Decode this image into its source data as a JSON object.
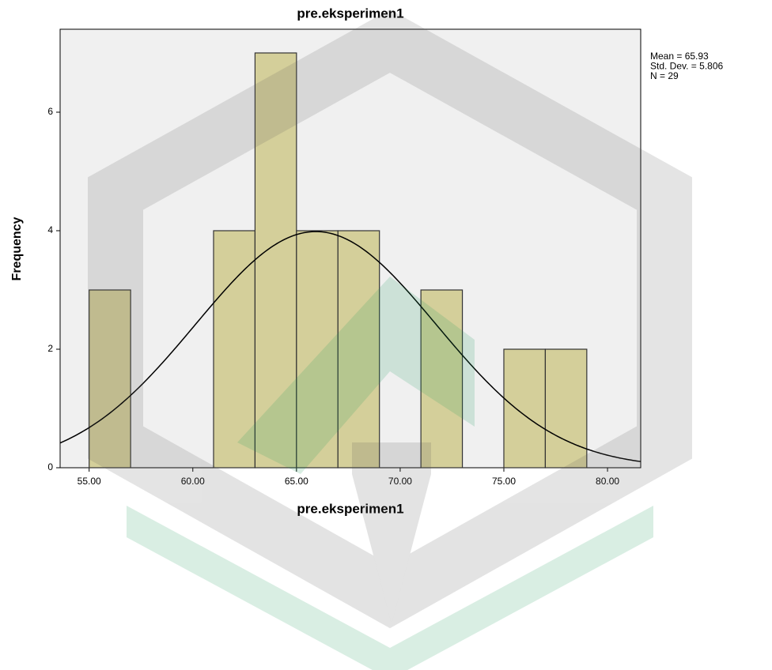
{
  "chart_data": {
    "type": "histogram",
    "title": "pre.eksperimen1",
    "x_label": "pre.eksperimen1",
    "y_label": "Frequency",
    "bins": [
      55,
      57,
      59,
      61,
      63,
      65,
      67,
      69,
      71,
      73,
      75,
      77,
      79
    ],
    "values": [
      3,
      0,
      0,
      4,
      7,
      4,
      4,
      0,
      3,
      0,
      2,
      2
    ],
    "color": "#d4cf9a",
    "xlim": [
      53.6,
      81.6
    ],
    "xticks": [
      {
        "value": 55,
        "label": "55.00"
      },
      {
        "value": 60,
        "label": "60.00"
      },
      {
        "value": 65,
        "label": "65.00"
      },
      {
        "value": 70,
        "label": "70.00"
      },
      {
        "value": 75,
        "label": "75.00"
      },
      {
        "value": 80,
        "label": "80.00"
      }
    ],
    "ylim": [
      0,
      7.4
    ],
    "yticks": [
      0,
      2,
      4,
      6
    ],
    "stats": [
      {
        "label": "Mean = 65.93",
        "value": 65.93
      },
      {
        "label": "Std. Dev. = 5.806",
        "value": 5.806
      },
      {
        "label": "N = 29",
        "value": 29
      }
    ]
  }
}
